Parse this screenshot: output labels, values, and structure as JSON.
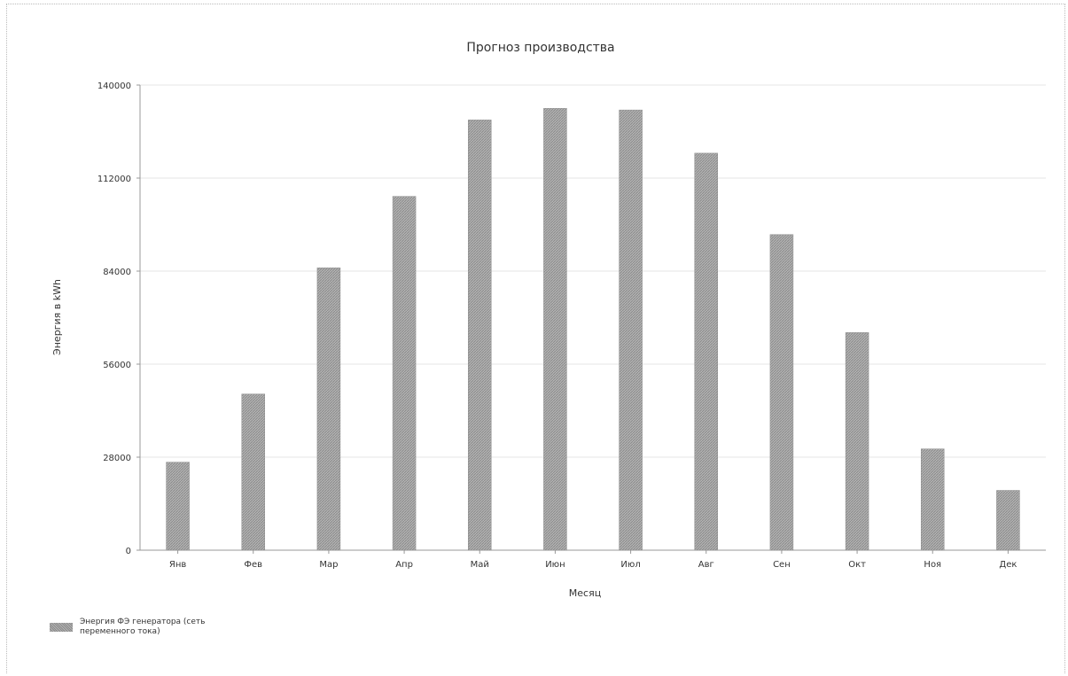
{
  "chart_data": {
    "type": "bar",
    "title": "Прогноз производства",
    "xlabel": "Месяц",
    "ylabel": "Энергия в kWh",
    "categories": [
      "Янв",
      "Фев",
      "Мар",
      "Апр",
      "Май",
      "Июн",
      "Июл",
      "Авг",
      "Сен",
      "Окт",
      "Ноя",
      "Дек"
    ],
    "series": [
      {
        "name": "Энергия ФЭ генератора (сеть переменного тока)",
        "values": [
          26500,
          47000,
          85000,
          106500,
          129500,
          133000,
          132500,
          119500,
          95000,
          65500,
          30500,
          18000
        ]
      }
    ],
    "ylim": [
      0,
      140000
    ],
    "yticks": [
      "0",
      "28000",
      "56000",
      "84000",
      "112000",
      "140000"
    ],
    "grid": true,
    "legend_position": "bottom-left",
    "bar_color": "#9a9a9a"
  }
}
